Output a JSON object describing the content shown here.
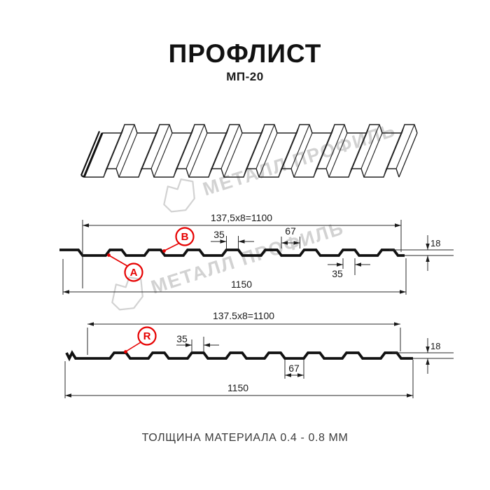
{
  "header": {
    "title": "ПРОФЛИСТ",
    "subtitle": "МП-20"
  },
  "watermark": {
    "text": "МЕТАЛЛ ПРОФИЛЬ"
  },
  "profile_top": {
    "module_dim": "137,5x8=1100",
    "crest_top_dim": "35",
    "valley_dim": "67",
    "height_dim": "18",
    "crest_bottom_dim": "35",
    "overall_dim": "1150",
    "marker_a": "A",
    "marker_b": "B"
  },
  "profile_bottom": {
    "module_dim": "137.5x8=1100",
    "crest_top_dim": "35",
    "valley_dim": "67",
    "height_dim": "18",
    "overall_dim": "1150",
    "marker_r": "R"
  },
  "footer": {
    "note": "ТОЛЩИНА МАТЕРИАЛА 0.4 - 0.8 ММ"
  },
  "colors": {
    "accent": "#e60000",
    "line": "#1a1a1a",
    "watermark": "#d2d2d2"
  }
}
